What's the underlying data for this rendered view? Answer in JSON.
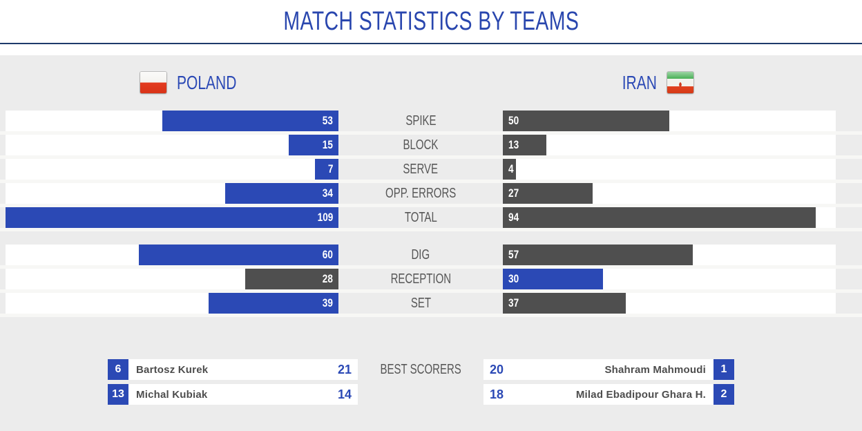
{
  "page": {
    "title": "MATCH STATISTICS BY TEAMS"
  },
  "colors": {
    "accent_blue": "#2b49b5",
    "bar_gray": "#4f4f4f",
    "title_blue": "#2946ae",
    "line_navy": "#1e3a6b",
    "label_gray": "#575757",
    "track_white": "#ffffff",
    "page_bg": "#ececec"
  },
  "teams": {
    "home": {
      "name": "POLAND",
      "flag_icon": "poland-flag-icon"
    },
    "away": {
      "name": "IRAN",
      "flag_icon": "iran-flag-icon"
    }
  },
  "chart_data": {
    "type": "bar",
    "orientation": "horizontal-mirrored",
    "title": "MATCH STATISTICS BY TEAMS",
    "categories": [
      "SPIKE",
      "BLOCK",
      "SERVE",
      "OPP. ERRORS",
      "TOTAL",
      "DIG",
      "RECEPTION",
      "SET"
    ],
    "series": [
      {
        "name": "POLAND",
        "values": [
          53,
          15,
          7,
          34,
          109,
          60,
          28,
          39
        ]
      },
      {
        "name": "IRAN",
        "values": [
          50,
          13,
          4,
          27,
          94,
          57,
          30,
          37
        ]
      }
    ],
    "groups": [
      [
        "SPIKE",
        "BLOCK",
        "SERVE",
        "OPP. ERRORS",
        "TOTAL"
      ],
      [
        "DIG",
        "RECEPTION",
        "SET"
      ]
    ],
    "scale": {
      "unit": "percent-of-track",
      "track_max": 100,
      "bar_width_rule": "min(value,100)%"
    },
    "winner_color": "#2b49b5",
    "loser_color": "#4f4f4f",
    "value_labels": "inside-bar, aligned to center column"
  },
  "best_scorers": {
    "label": "BEST SCORERS",
    "home": [
      {
        "jersey": "6",
        "name": "Bartosz Kurek",
        "points": "21"
      },
      {
        "jersey": "13",
        "name": "Michal Kubiak",
        "points": "14"
      }
    ],
    "away": [
      {
        "jersey": "1",
        "name": "Shahram Mahmoudi",
        "points": "20"
      },
      {
        "jersey": "2",
        "name": "Milad Ebadipour Ghara H.",
        "points": "18"
      }
    ]
  }
}
